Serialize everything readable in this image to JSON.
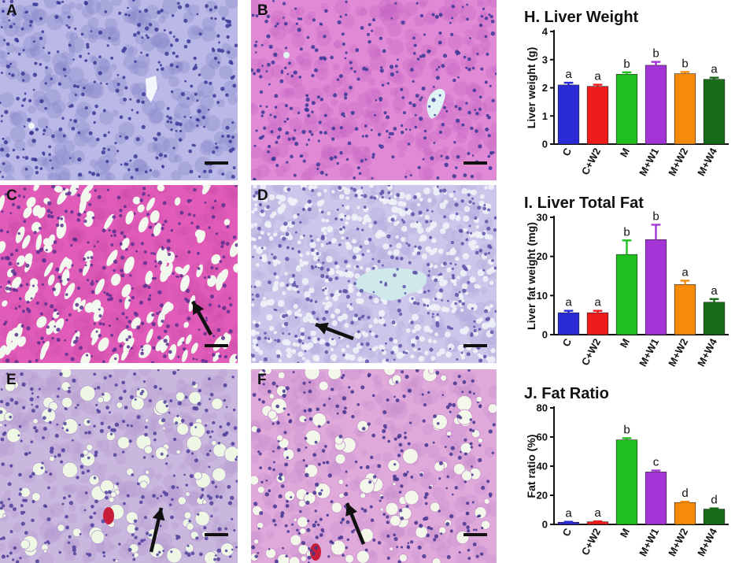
{
  "micrographs": [
    {
      "label": "A",
      "bg": "#b9b8e6",
      "cell": "#8a86c9",
      "nuc": "#3a3a96",
      "vac": "#f2f6fb",
      "kind": "normal",
      "arrow": false
    },
    {
      "label": "B",
      "bg": "#e08ad6",
      "cell": "#c567c4",
      "nuc": "#3b3796",
      "vac": "#dff2f4",
      "kind": "normal",
      "arrow": false
    },
    {
      "label": "C",
      "bg": "#e05cb8",
      "cell": "#cf4ea8",
      "nuc": "#5b2f8f",
      "vac": "#f3f8ee",
      "kind": "streak",
      "arrow": true
    },
    {
      "label": "D",
      "bg": "#cdc6ea",
      "cell": "#b3a9dc",
      "nuc": "#5a52a8",
      "vac": "#eef2f7",
      "kind": "mesh",
      "arrow": true
    },
    {
      "label": "E",
      "bg": "#c9b7de",
      "cell": "#b59bd2",
      "nuc": "#4d3f9b",
      "vac": "#eef6e4",
      "kind": "droplet",
      "arrow": true
    },
    {
      "label": "F",
      "bg": "#dfaada",
      "cell": "#c98fcd",
      "nuc": "#45358f",
      "vac": "#f2f7ea",
      "kind": "droplet",
      "arrow": true
    }
  ],
  "chart_data": [
    {
      "type": "bar",
      "title": "H. Liver Weight",
      "ylabel": "Liver weight (g)",
      "categories": [
        "C",
        "C+W2",
        "M",
        "M+W1",
        "M+W2",
        "M+W4"
      ],
      "values": [
        2.1,
        2.05,
        2.48,
        2.8,
        2.5,
        2.3
      ],
      "errors": [
        0.08,
        0.06,
        0.07,
        0.12,
        0.06,
        0.06
      ],
      "letters": [
        "a",
        "a",
        "b",
        "b",
        "b",
        "a"
      ],
      "ylim": [
        0,
        4
      ],
      "yticks": [
        0,
        1,
        2,
        3,
        4
      ],
      "colors": [
        "#2b2bd6",
        "#ee1c1c",
        "#1fbf1f",
        "#a335d6",
        "#f58a0b",
        "#176d17"
      ]
    },
    {
      "type": "bar",
      "title": "I. Liver Total Fat",
      "ylabel": "Liver fat weight (mg)",
      "categories": [
        "C",
        "C+W2",
        "M",
        "M+W1",
        "M+W2",
        "M+W4"
      ],
      "values": [
        5.6,
        5.6,
        20.5,
        24.3,
        12.8,
        8.3
      ],
      "errors": [
        0.5,
        0.5,
        3.6,
        3.8,
        1.0,
        0.8
      ],
      "letters": [
        "a",
        "a",
        "b",
        "b",
        "a",
        "a"
      ],
      "ylim": [
        0,
        30
      ],
      "yticks": [
        0,
        10,
        20,
        30
      ],
      "colors": [
        "#2b2bd6",
        "#ee1c1c",
        "#1fbf1f",
        "#a335d6",
        "#f58a0b",
        "#176d17"
      ]
    },
    {
      "type": "bar",
      "title": "J. Fat Ratio",
      "ylabel": "Fat ratio  (%)",
      "categories": [
        "C",
        "C+W2",
        "M",
        "M+W1",
        "M+W2",
        "M+W4"
      ],
      "values": [
        1.5,
        1.8,
        58,
        36,
        15,
        10.5
      ],
      "errors": [
        0.3,
        0.3,
        1.2,
        1.0,
        0.6,
        0.5
      ],
      "letters": [
        "a",
        "a",
        "b",
        "c",
        "d",
        "d"
      ],
      "ylim": [
        0,
        80
      ],
      "yticks": [
        0,
        20,
        40,
        60,
        80
      ],
      "colors": [
        "#2b2bd6",
        "#ee1c1c",
        "#1fbf1f",
        "#a335d6",
        "#f58a0b",
        "#176d17"
      ]
    }
  ]
}
